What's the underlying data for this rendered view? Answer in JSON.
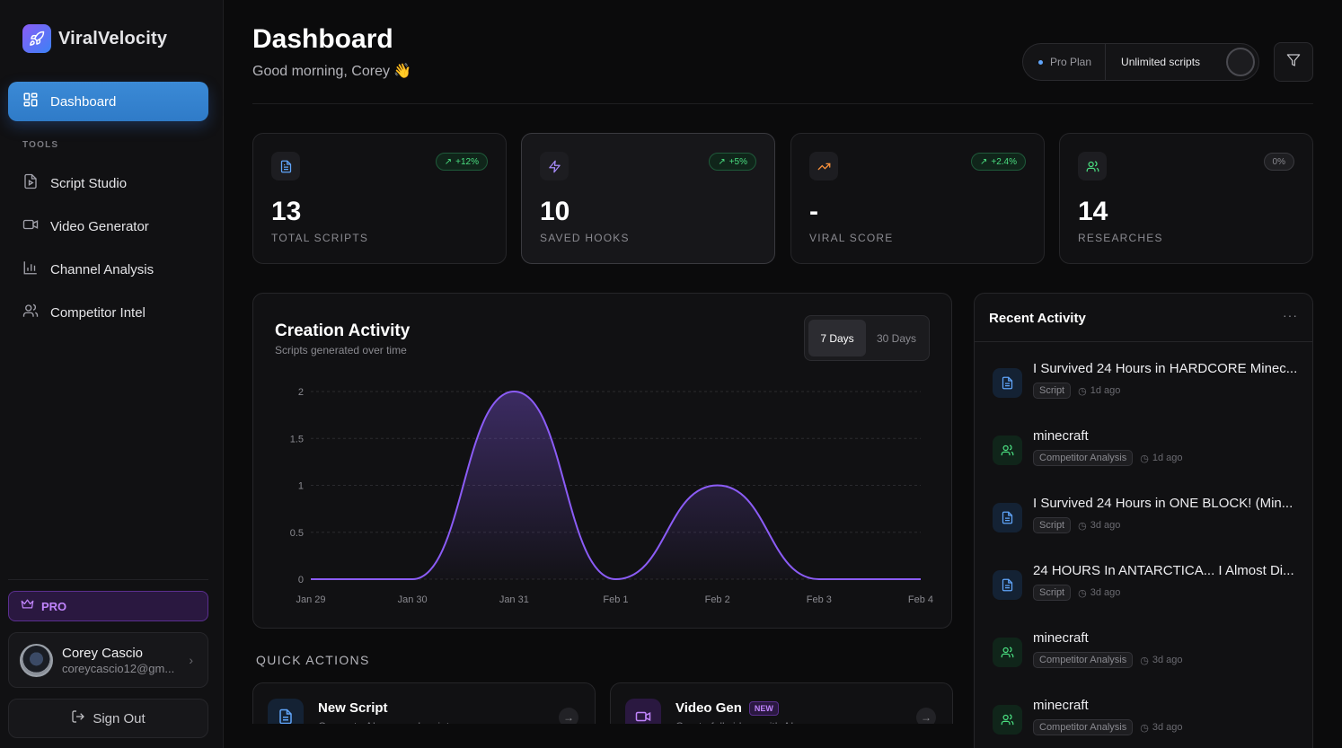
{
  "brand": {
    "name": "ViralVelocity"
  },
  "sidebar": {
    "active": {
      "label": "Dashboard"
    },
    "tools_heading": "TOOLS",
    "items": [
      {
        "label": "Script Studio",
        "icon": "file-play-icon"
      },
      {
        "label": "Video Generator",
        "icon": "video-icon"
      },
      {
        "label": "Channel Analysis",
        "icon": "bar-chart-icon"
      },
      {
        "label": "Competitor Intel",
        "icon": "users-icon"
      }
    ],
    "pro_label": "PRO",
    "user": {
      "name": "Corey Cascio",
      "email": "coreycascio12@gm..."
    },
    "signout_label": "Sign Out"
  },
  "header": {
    "title": "Dashboard",
    "greeting": "Good morning, Corey 👋",
    "plan_label": "Pro Plan",
    "plan_value": "Unlimited scripts"
  },
  "stats": [
    {
      "value": "13",
      "label": "TOTAL SCRIPTS",
      "delta": "+12%",
      "icon": "document-icon",
      "color": "#60a5fa"
    },
    {
      "value": "10",
      "label": "SAVED HOOKS",
      "delta": "+5%",
      "icon": "bolt-icon",
      "color": "#a78bfa"
    },
    {
      "value": "-",
      "label": "VIRAL SCORE",
      "delta": "+2.4%",
      "icon": "trending-up-icon",
      "color": "#fb923c"
    },
    {
      "value": "14",
      "label": "RESEARCHES",
      "delta": "0%",
      "icon": "users-icon",
      "color": "#4ade80"
    }
  ],
  "chart": {
    "title": "Creation Activity",
    "subtitle": "Scripts generated over time",
    "ranges": [
      "7 Days",
      "30 Days"
    ],
    "active_range": "7 Days"
  },
  "chart_data": {
    "type": "area",
    "title": "Creation Activity",
    "categories": [
      "Jan 29",
      "Jan 30",
      "Jan 31",
      "Feb 1",
      "Feb 2",
      "Feb 3",
      "Feb 4"
    ],
    "values": [
      0,
      0,
      2,
      0,
      1,
      0,
      0
    ],
    "yticks": [
      "0",
      "0.5",
      "1",
      "1.5",
      "2"
    ],
    "ylim": [
      0,
      2
    ],
    "grid": true,
    "line_color": "#8b5cf6"
  },
  "quick_actions": {
    "heading": "QUICK ACTIONS",
    "items": [
      {
        "title": "New Script",
        "subtitle": "Generate AI-powered scripts",
        "badge": ""
      },
      {
        "title": "Video Gen",
        "subtitle": "Create full videos with AI",
        "badge": "NEW"
      }
    ]
  },
  "activity": {
    "title": "Recent Activity",
    "items": [
      {
        "title": "I Survived 24 Hours in HARDCORE Minec...",
        "tag": "Script",
        "time": "1d ago",
        "kind": "doc"
      },
      {
        "title": "minecraft",
        "tag": "Competitor Analysis",
        "time": "1d ago",
        "kind": "users"
      },
      {
        "title": "I Survived 24 Hours in ONE BLOCK! (Min...",
        "tag": "Script",
        "time": "3d ago",
        "kind": "doc"
      },
      {
        "title": "24 HOURS In ANTARCTICA... I Almost Di...",
        "tag": "Script",
        "time": "3d ago",
        "kind": "doc"
      },
      {
        "title": "minecraft",
        "tag": "Competitor Analysis",
        "time": "3d ago",
        "kind": "users"
      },
      {
        "title": "minecraft",
        "tag": "Competitor Analysis",
        "time": "3d ago",
        "kind": "users"
      }
    ]
  }
}
